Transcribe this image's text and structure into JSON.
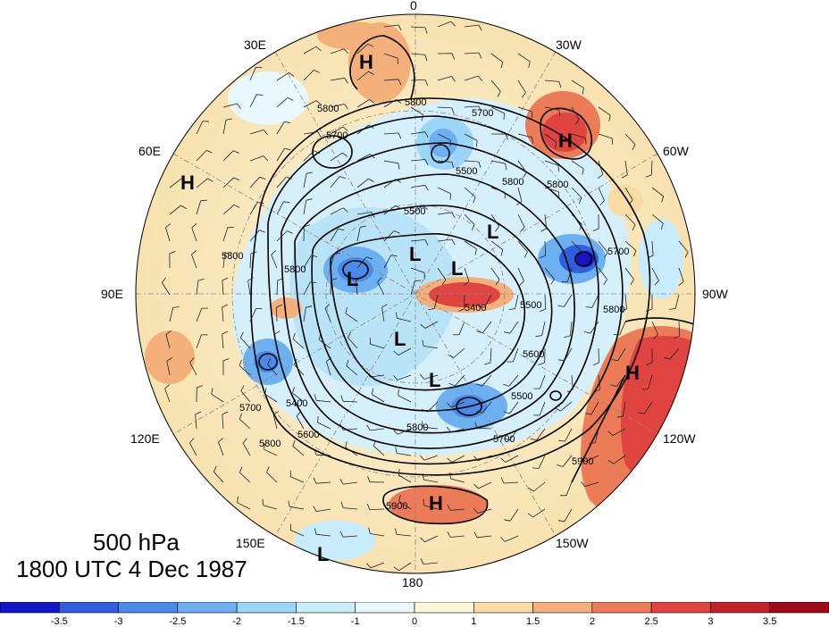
{
  "map": {
    "meridian_labels": [
      "0",
      "30W",
      "60W",
      "90W",
      "120W",
      "150W",
      "180",
      "150E",
      "120E",
      "90E",
      "60E",
      "30E"
    ],
    "high_symbol": "H",
    "low_symbol": "L",
    "contour_labels": [
      "5800",
      "5700",
      "5600",
      "5500",
      "5400",
      "5900"
    ],
    "colors": {
      "wind_barb": "#222222",
      "contour": "#000000",
      "coast": "#555555"
    }
  },
  "caption": {
    "level": "500 hPa",
    "time": "1800 UTC 4 Dec 1987"
  },
  "colorbar": {
    "labels": [
      "-3.5",
      "-3",
      "-2.5",
      "-2",
      "-1.5",
      "-1",
      "0",
      "1",
      "1.5",
      "2",
      "2.5",
      "3",
      "3.5"
    ],
    "colors": [
      "#1414c8",
      "#2f5fdc",
      "#4a8ae8",
      "#6cb0f2",
      "#9bd6f8",
      "#c8ecfc",
      "#e8f8fd",
      "#fdf6d8",
      "#f8dca4",
      "#f3b07a",
      "#ec7b58",
      "#e04440",
      "#c4222a",
      "#9e0c1c"
    ]
  }
}
